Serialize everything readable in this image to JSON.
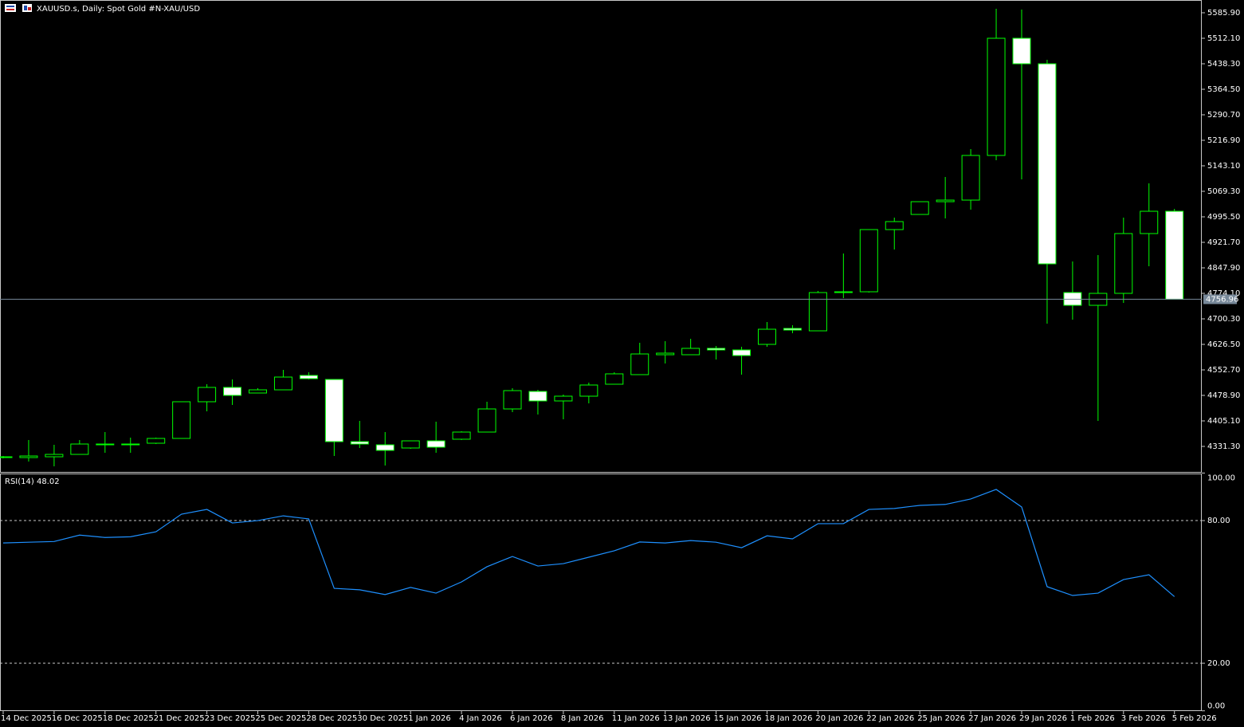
{
  "chart_data": [
    {
      "type": "candlestick",
      "title": "XAUUSD.s, Daily:  Spot Gold #N-XAU/USD",
      "categories": [
        "14 Dec 2025",
        null,
        "16 Dec 2025",
        null,
        "18 Dec 2025",
        null,
        "21 Dec 2025",
        null,
        "23 Dec 2025",
        null,
        "25 Dec 2025",
        null,
        "28 Dec 2025",
        null,
        "30 Dec 2025",
        null,
        "1 Jan 2026",
        null,
        "4 Jan 2026",
        null,
        "6 Jan 2026",
        null,
        "8 Jan 2026",
        null,
        "11 Jan 2026",
        null,
        "13 Jan 2026",
        null,
        "15 Jan 2026",
        null,
        "18 Jan 2026",
        null,
        "20 Jan 2026",
        null,
        "22 Jan 2026",
        null,
        "25 Jan 2026",
        null,
        "27 Jan 2026",
        null,
        "29 Jan 2026",
        null,
        "1 Feb 2026",
        null,
        "3 Feb 2026",
        null,
        "5 Feb 2026"
      ],
      "open": [
        4299.0,
        4299.0,
        4301.3,
        4308.2,
        4335.9,
        4335.9,
        4340.5,
        4354.4,
        4460.5,
        4502.0,
        4485.8,
        4495.0,
        4536.6,
        4525.0,
        4345.1,
        4335.9,
        4326.7,
        4347.4,
        4352.1,
        4372.8,
        4439.7,
        4490.4,
        4462.8,
        4476.6,
        4511.2,
        4538.9,
        4596.5,
        4596.5,
        4615.0,
        4610.4,
        4626.5,
        4672.6,
        4665.7,
        4776.4,
        4778.7,
        4958.6,
        5002.4,
        5039.3,
        5043.9,
        5173.1,
        5512.1,
        5438.3,
        4776.4,
        4739.5,
        4774.1,
        4947.1,
        5011.6
      ],
      "high": [
        4303.6,
        4349.8,
        4335.9,
        4349.8,
        4372.8,
        4356.7,
        4356.7,
        4460.5,
        4511.2,
        4525.0,
        4499.7,
        4552.7,
        4545.8,
        4525.0,
        4405.1,
        4372.8,
        4347.4,
        4402.8,
        4375.1,
        4460.5,
        4499.7,
        4495.0,
        4481.2,
        4515.8,
        4545.8,
        4631.1,
        4635.7,
        4642.6,
        4621.9,
        4619.6,
        4691.1,
        4681.9,
        4781.0,
        4889.4,
        4958.6,
        4993.2,
        5039.3,
        5110.8,
        5191.5,
        5597.4,
        5595.1,
        5449.8,
        4866.4,
        4884.8,
        4993.2,
        5092.4,
        5018.6
      ],
      "low": [
        4296.7,
        4287.5,
        4273.6,
        4308.2,
        4312.9,
        4312.9,
        4338.2,
        4354.4,
        4432.8,
        4451.2,
        4485.8,
        4495.0,
        4525.0,
        4303.6,
        4326.7,
        4276.0,
        4324.4,
        4312.9,
        4349.8,
        4372.8,
        4430.5,
        4423.6,
        4409.7,
        4455.8,
        4511.2,
        4538.9,
        4571.2,
        4596.5,
        4582.7,
        4538.9,
        4619.6,
        4658.8,
        4665.7,
        4760.3,
        4776.4,
        4900.9,
        5002.4,
        4990.9,
        5016.3,
        5159.2,
        5103.9,
        4686.5,
        4698.0,
        4405.1,
        4746.4,
        4852.5,
        4756.96
      ],
      "close": [
        4301.3,
        4303.6,
        4308.2,
        4338.2,
        4338.2,
        4338.2,
        4354.4,
        4460.5,
        4502.0,
        4478.9,
        4495.0,
        4531.9,
        4527.3,
        4345.1,
        4338.2,
        4319.8,
        4347.4,
        4329.0,
        4372.8,
        4439.7,
        4492.7,
        4462.8,
        4476.6,
        4508.9,
        4541.2,
        4598.8,
        4601.1,
        4615.0,
        4610.4,
        4594.2,
        4670.3,
        4668.0,
        4776.4,
        4778.7,
        4958.6,
        4981.7,
        5039.3,
        5043.9,
        5173.1,
        5512.1,
        5438.3,
        4859.4,
        4739.5,
        4774.1,
        4947.1,
        5011.6,
        4756.96
      ],
      "up_color": "#000000",
      "down_color": "#ffffff",
      "outline_color": "#00ff00",
      "current_price": 4756.96,
      "current_price_color": "#778899",
      "ylim": [
        4257.5,
        5618.2
      ],
      "yticks": [
        {
          "value": 5585.9,
          "label": "5585.90"
        },
        {
          "value": 5512.1,
          "label": "5512.10"
        },
        {
          "value": 5438.3,
          "label": "5438.30"
        },
        {
          "value": 5364.5,
          "label": "5364.50"
        },
        {
          "value": 5290.7,
          "label": "5290.70"
        },
        {
          "value": 5216.9,
          "label": "5216.90"
        },
        {
          "value": 5143.1,
          "label": "5143.10"
        },
        {
          "value": 5069.3,
          "label": "5069.30"
        },
        {
          "value": 4995.5,
          "label": "4995.50"
        },
        {
          "value": 4921.7,
          "label": "4921.70"
        },
        {
          "value": 4847.9,
          "label": "4847.90"
        },
        {
          "value": 4774.1,
          "label": "4774.10"
        },
        {
          "value": 4700.3,
          "label": "4700.30"
        },
        {
          "value": 4626.5,
          "label": "4626.50"
        },
        {
          "value": 4552.7,
          "label": "4552.70"
        },
        {
          "value": 4478.9,
          "label": "4478.90"
        },
        {
          "value": 4405.1,
          "label": "4405.10"
        },
        {
          "value": 4331.3,
          "label": "4331.30"
        }
      ],
      "grid": false
    },
    {
      "type": "line",
      "title": "RSI(14) 48.02",
      "color": "#1e90ff",
      "values": [
        70.6,
        70.9,
        71.2,
        73.9,
        72.9,
        73.2,
        75.3,
        82.7,
        84.7,
        79.0,
        80.0,
        82.0,
        80.7,
        51.5,
        50.9,
        48.9,
        51.9,
        49.5,
        54.2,
        60.6,
        64.9,
        60.9,
        61.9,
        64.6,
        67.3,
        71.0,
        70.6,
        71.6,
        70.9,
        68.6,
        73.6,
        72.3,
        78.7,
        78.7,
        84.7,
        85.1,
        86.4,
        86.8,
        89.1,
        93.1,
        85.7,
        52.2,
        48.5,
        49.5,
        55.2,
        57.2,
        48.02
      ],
      "ylim": [
        0,
        100
      ],
      "yticks": [
        {
          "value": 100,
          "label": "100.00"
        },
        {
          "value": 80,
          "label": "80.00"
        },
        {
          "value": 20,
          "label": "20.00"
        },
        {
          "value": 0,
          "label": "0.00"
        }
      ]
    }
  ]
}
